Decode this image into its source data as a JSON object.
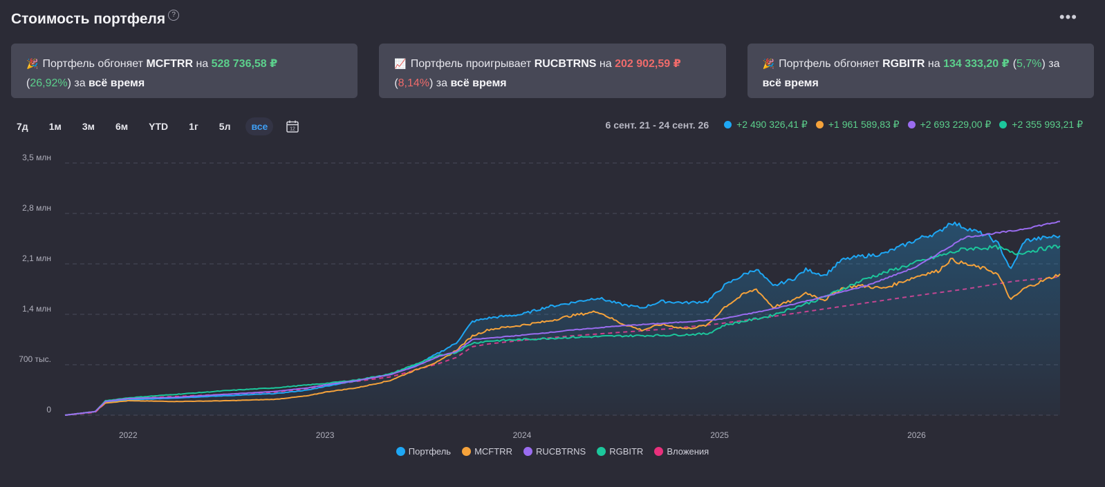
{
  "header": {
    "title": "Стоимость портфеля",
    "help_symbol": "?",
    "more_symbol": "•••"
  },
  "cards": [
    {
      "emoji": "🎉",
      "prefix": "Портфель обгоняет ",
      "benchmark": "MCFTRR",
      "mid": " на ",
      "amount": "528 736,58 ₽",
      "pct_open": "(",
      "pct": "26,92%",
      "pct_close": ")",
      "suffix": " за ",
      "period": "всё время",
      "sign": "pos"
    },
    {
      "emoji": "📈",
      "prefix": "Портфель проигрывает ",
      "benchmark": "RUCBTRNS",
      "mid": " на ",
      "amount": "202 902,59 ₽",
      "pct_open": "(",
      "pct": "8,14%",
      "pct_close": ")",
      "suffix": " за ",
      "period": "всё время",
      "sign": "neg"
    },
    {
      "emoji": "🎉",
      "prefix": "Портфель обгоняет ",
      "benchmark": "RGBITR",
      "mid": " на ",
      "amount": "134 333,20 ₽",
      "pct_open": "(",
      "pct": "5,7%",
      "pct_close": ")",
      "suffix": " за ",
      "period": "всё время",
      "sign": "pos"
    }
  ],
  "periods": [
    "7д",
    "1м",
    "3м",
    "6м",
    "YTD",
    "1г",
    "5л",
    "все"
  ],
  "active_period": "все",
  "calendar_icon": "calendar-icon",
  "calendar_day": "12",
  "range_summary": {
    "label": "6 сент. 21 - 24 сент. 26",
    "deltas": [
      {
        "color": "#1ea7f4",
        "value": "+2 490 326,41 ₽"
      },
      {
        "color": "#f5a23b",
        "value": "+1 961 589,83 ₽"
      },
      {
        "color": "#9a6cf0",
        "value": "+2 693 229,00 ₽"
      },
      {
        "color": "#1cc79c",
        "value": "+2 355 993,21 ₽"
      }
    ]
  },
  "colors": {
    "portfolio": "#1ea7f4",
    "mcftrr": "#f5a23b",
    "rucbtrns": "#9a6cf0",
    "rgbitr": "#1cc79c",
    "investments": "#e8307c",
    "positive": "#5cd08c",
    "negative": "#ef6b6b"
  },
  "chart_data": {
    "type": "line",
    "x_unit": "date",
    "x_range": [
      "2021-09-06",
      "2026-09-24"
    ],
    "ylim": [
      0,
      3500000
    ],
    "y_ticks": [
      {
        "value": 0,
        "label": "0"
      },
      {
        "value": 700000,
        "label": "700 тыс."
      },
      {
        "value": 1400000,
        "label": "1,4 млн"
      },
      {
        "value": 2100000,
        "label": "2,1 млн"
      },
      {
        "value": 2800000,
        "label": "2,8 млн"
      },
      {
        "value": 3500000,
        "label": "3,5 млн"
      }
    ],
    "x_ticks": [
      {
        "value": "2022-01-01",
        "label": "2022"
      },
      {
        "value": "2023-01-01",
        "label": "2023"
      },
      {
        "value": "2024-01-01",
        "label": "2024"
      },
      {
        "value": "2025-01-01",
        "label": "2025"
      },
      {
        "value": "2026-01-01",
        "label": "2026"
      }
    ],
    "grid": "horizontal dashed",
    "legend_position": "bottom",
    "series": [
      {
        "name": "Портфель",
        "color": "#1ea7f4",
        "style": "solid",
        "fill": true,
        "points": [
          [
            "2021-09-06",
            0
          ],
          [
            "2021-11-01",
            50000
          ],
          [
            "2021-11-20",
            180000
          ],
          [
            "2022-01-01",
            210000
          ],
          [
            "2022-04-01",
            240000
          ],
          [
            "2022-07-01",
            270000
          ],
          [
            "2022-10-01",
            300000
          ],
          [
            "2022-12-01",
            350000
          ],
          [
            "2023-01-01",
            400000
          ],
          [
            "2023-03-01",
            480000
          ],
          [
            "2023-05-01",
            570000
          ],
          [
            "2023-06-15",
            680000
          ],
          [
            "2023-08-01",
            870000
          ],
          [
            "2023-09-01",
            1000000
          ],
          [
            "2023-10-01",
            1300000
          ],
          [
            "2023-11-01",
            1350000
          ],
          [
            "2024-01-01",
            1400000
          ],
          [
            "2024-02-15",
            1500000
          ],
          [
            "2024-04-01",
            1560000
          ],
          [
            "2024-05-20",
            1630000
          ],
          [
            "2024-07-01",
            1540000
          ],
          [
            "2024-08-10",
            1490000
          ],
          [
            "2024-09-15",
            1580000
          ],
          [
            "2024-11-01",
            1560000
          ],
          [
            "2024-12-10",
            1580000
          ],
          [
            "2025-01-10",
            1800000
          ],
          [
            "2025-02-15",
            1950000
          ],
          [
            "2025-03-10",
            2030000
          ],
          [
            "2025-04-10",
            1790000
          ],
          [
            "2025-05-20",
            1900000
          ],
          [
            "2025-06-10",
            2020000
          ],
          [
            "2025-07-15",
            1940000
          ],
          [
            "2025-08-15",
            2150000
          ],
          [
            "2025-09-15",
            2200000
          ],
          [
            "2025-11-01",
            2240000
          ],
          [
            "2025-12-15",
            2380000
          ],
          [
            "2026-01-15",
            2480000
          ],
          [
            "2026-02-10",
            2530000
          ],
          [
            "2026-03-05",
            2680000
          ],
          [
            "2026-04-10",
            2580000
          ],
          [
            "2026-05-15",
            2480000
          ],
          [
            "2026-06-01",
            2380000
          ],
          [
            "2026-06-25",
            2020000
          ],
          [
            "2026-07-20",
            2420000
          ],
          [
            "2026-08-15",
            2450000
          ],
          [
            "2026-09-24",
            2490000
          ]
        ]
      },
      {
        "name": "MCFTRR",
        "color": "#f5a23b",
        "style": "solid",
        "fill": false,
        "points": [
          [
            "2021-09-06",
            0
          ],
          [
            "2021-11-01",
            50000
          ],
          [
            "2021-11-20",
            170000
          ],
          [
            "2022-01-01",
            200000
          ],
          [
            "2022-04-01",
            190000
          ],
          [
            "2022-07-01",
            200000
          ],
          [
            "2022-10-01",
            220000
          ],
          [
            "2022-12-01",
            270000
          ],
          [
            "2023-01-01",
            320000
          ],
          [
            "2023-03-01",
            380000
          ],
          [
            "2023-05-01",
            480000
          ],
          [
            "2023-06-15",
            620000
          ],
          [
            "2023-08-01",
            750000
          ],
          [
            "2023-09-01",
            900000
          ],
          [
            "2023-10-01",
            1100000
          ],
          [
            "2023-11-01",
            1190000
          ],
          [
            "2024-01-01",
            1250000
          ],
          [
            "2024-02-15",
            1300000
          ],
          [
            "2024-04-01",
            1380000
          ],
          [
            "2024-05-20",
            1440000
          ],
          [
            "2024-07-01",
            1280000
          ],
          [
            "2024-08-10",
            1180000
          ],
          [
            "2024-09-15",
            1260000
          ],
          [
            "2024-11-01",
            1200000
          ],
          [
            "2024-12-10",
            1250000
          ],
          [
            "2025-01-10",
            1500000
          ],
          [
            "2025-02-15",
            1680000
          ],
          [
            "2025-03-10",
            1750000
          ],
          [
            "2025-04-10",
            1500000
          ],
          [
            "2025-05-20",
            1600000
          ],
          [
            "2025-06-10",
            1700000
          ],
          [
            "2025-07-15",
            1600000
          ],
          [
            "2025-08-15",
            1760000
          ],
          [
            "2025-09-15",
            1800000
          ],
          [
            "2025-11-01",
            1760000
          ],
          [
            "2025-12-15",
            1880000
          ],
          [
            "2026-01-15",
            1960000
          ],
          [
            "2026-02-10",
            2000000
          ],
          [
            "2026-03-05",
            2160000
          ],
          [
            "2026-04-10",
            2080000
          ],
          [
            "2026-05-15",
            2020000
          ],
          [
            "2026-06-01",
            1950000
          ],
          [
            "2026-06-25",
            1600000
          ],
          [
            "2026-07-20",
            1760000
          ],
          [
            "2026-08-15",
            1840000
          ],
          [
            "2026-09-24",
            1960000
          ]
        ]
      },
      {
        "name": "RUCBTRNS",
        "color": "#9a6cf0",
        "style": "solid",
        "fill": false,
        "points": [
          [
            "2021-09-06",
            0
          ],
          [
            "2021-11-01",
            50000
          ],
          [
            "2021-11-20",
            190000
          ],
          [
            "2022-01-01",
            230000
          ],
          [
            "2022-04-01",
            250000
          ],
          [
            "2022-07-01",
            290000
          ],
          [
            "2022-10-01",
            330000
          ],
          [
            "2022-12-01",
            380000
          ],
          [
            "2023-01-01",
            420000
          ],
          [
            "2023-03-01",
            480000
          ],
          [
            "2023-05-01",
            560000
          ],
          [
            "2023-06-15",
            670000
          ],
          [
            "2023-08-01",
            820000
          ],
          [
            "2023-09-01",
            880000
          ],
          [
            "2023-10-01",
            1050000
          ],
          [
            "2023-11-01",
            1070000
          ],
          [
            "2024-01-01",
            1110000
          ],
          [
            "2024-04-01",
            1180000
          ],
          [
            "2024-07-01",
            1240000
          ],
          [
            "2024-10-01",
            1280000
          ],
          [
            "2025-01-01",
            1330000
          ],
          [
            "2025-04-01",
            1460000
          ],
          [
            "2025-07-01",
            1620000
          ],
          [
            "2025-10-01",
            1800000
          ],
          [
            "2026-01-01",
            2060000
          ],
          [
            "2026-04-01",
            2470000
          ],
          [
            "2026-07-01",
            2560000
          ],
          [
            "2026-09-24",
            2690000
          ]
        ]
      },
      {
        "name": "RGBITR",
        "color": "#1cc79c",
        "style": "solid",
        "fill": false,
        "points": [
          [
            "2021-09-06",
            0
          ],
          [
            "2021-11-01",
            50000
          ],
          [
            "2021-11-20",
            200000
          ],
          [
            "2022-01-01",
            240000
          ],
          [
            "2022-04-01",
            290000
          ],
          [
            "2022-07-01",
            340000
          ],
          [
            "2022-10-01",
            380000
          ],
          [
            "2022-12-01",
            420000
          ],
          [
            "2023-01-01",
            440000
          ],
          [
            "2023-03-01",
            490000
          ],
          [
            "2023-05-01",
            570000
          ],
          [
            "2023-06-15",
            700000
          ],
          [
            "2023-08-01",
            830000
          ],
          [
            "2023-09-01",
            870000
          ],
          [
            "2023-10-01",
            1000000
          ],
          [
            "2023-11-01",
            1030000
          ],
          [
            "2024-01-01",
            1050000
          ],
          [
            "2024-04-01",
            1080000
          ],
          [
            "2024-07-01",
            1100000
          ],
          [
            "2024-10-01",
            1110000
          ],
          [
            "2024-12-10",
            1130000
          ],
          [
            "2025-01-10",
            1250000
          ],
          [
            "2025-04-01",
            1370000
          ],
          [
            "2025-07-01",
            1600000
          ],
          [
            "2025-10-01",
            1900000
          ],
          [
            "2026-01-01",
            2120000
          ],
          [
            "2026-04-01",
            2310000
          ],
          [
            "2026-06-01",
            2330000
          ],
          [
            "2026-07-01",
            2240000
          ],
          [
            "2026-09-24",
            2350000
          ]
        ]
      },
      {
        "name": "Вложения",
        "color": "#e8307c",
        "style": "dashed",
        "fill": false,
        "points": [
          [
            "2021-09-06",
            0
          ],
          [
            "2021-11-01",
            40000
          ],
          [
            "2021-11-20",
            170000
          ],
          [
            "2022-01-01",
            230000
          ],
          [
            "2022-04-01",
            260000
          ],
          [
            "2022-07-01",
            290000
          ],
          [
            "2022-10-01",
            320000
          ],
          [
            "2022-12-01",
            370000
          ],
          [
            "2023-01-01",
            410000
          ],
          [
            "2023-03-01",
            470000
          ],
          [
            "2023-05-01",
            530000
          ],
          [
            "2023-06-15",
            620000
          ],
          [
            "2023-08-01",
            720000
          ],
          [
            "2023-09-01",
            800000
          ],
          [
            "2023-10-01",
            950000
          ],
          [
            "2023-11-01",
            990000
          ],
          [
            "2024-01-01",
            1040000
          ],
          [
            "2024-04-01",
            1100000
          ],
          [
            "2024-07-01",
            1150000
          ],
          [
            "2024-10-01",
            1200000
          ],
          [
            "2025-01-01",
            1270000
          ],
          [
            "2025-04-01",
            1360000
          ],
          [
            "2025-07-01",
            1460000
          ],
          [
            "2025-10-01",
            1560000
          ],
          [
            "2026-01-01",
            1660000
          ],
          [
            "2026-04-01",
            1750000
          ],
          [
            "2026-07-01",
            1860000
          ],
          [
            "2026-09-24",
            1920000
          ]
        ]
      }
    ]
  }
}
